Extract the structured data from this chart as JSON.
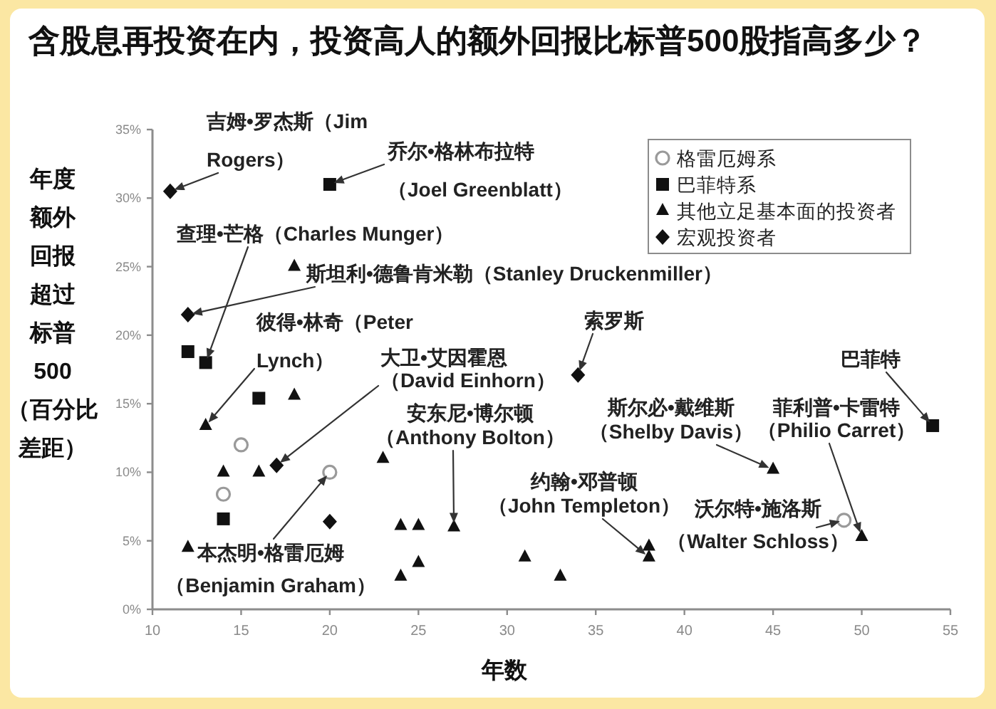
{
  "chart_data": {
    "type": "scatter",
    "title": "含股息再投资在内，投资高人的额外回报比标普500股指高多少？",
    "xlabel": "年数",
    "ylabel": "年度额外回报超过标普500（百分比差距）",
    "xlim": [
      10,
      55
    ],
    "xticks": [
      10,
      15,
      20,
      25,
      30,
      35,
      40,
      45,
      50,
      55
    ],
    "ylim": [
      0,
      35
    ],
    "yticks": [
      {
        "value": 0,
        "label": "0%"
      },
      {
        "value": 5,
        "label": "5%"
      },
      {
        "value": 10,
        "label": "10%"
      },
      {
        "value": 15,
        "label": "15%"
      },
      {
        "value": 20,
        "label": "20%"
      },
      {
        "value": 25,
        "label": "25%"
      },
      {
        "value": 30,
        "label": "30%"
      },
      {
        "value": 35,
        "label": "35%"
      }
    ],
    "grid": false,
    "legend": "top right",
    "series": [
      {
        "name": "格雷厄姆系",
        "marker": "circle",
        "color": "#9a9a9a",
        "x": [
          15,
          14,
          20,
          49
        ],
        "values": [
          12,
          8.4,
          10,
          6.5
        ]
      },
      {
        "name": "巴菲特系",
        "marker": "square",
        "color": "#111111",
        "x": [
          20,
          12,
          13,
          16,
          14,
          54
        ],
        "values": [
          31,
          18.8,
          18,
          15.4,
          6.6,
          13.4
        ]
      },
      {
        "name": "其他立足基本面的投资者",
        "marker": "triangle",
        "color": "#111111",
        "x": [
          18,
          18,
          13,
          14,
          16,
          12,
          23,
          24,
          25,
          27,
          25,
          24,
          31,
          33,
          38,
          38,
          45,
          50
        ],
        "values": [
          25,
          15.6,
          13.4,
          10,
          10,
          4.5,
          11,
          6.1,
          6.1,
          6,
          3.4,
          2.4,
          3.8,
          2.4,
          4.6,
          3.8,
          10.2,
          5.3
        ]
      },
      {
        "name": "宏观投资者",
        "marker": "diamond",
        "color": "#111111",
        "x": [
          11,
          12,
          17,
          20,
          34
        ],
        "values": [
          30.5,
          21.5,
          10.5,
          6.4,
          17.1
        ]
      }
    ],
    "annotations": [
      {
        "text": "吉姆•罗杰斯（Jim Rogers）",
        "x": 11,
        "y": 30.5
      },
      {
        "text": "乔尔•格林布拉特（Joel Greenblatt）",
        "x": 20,
        "y": 31
      },
      {
        "text": "查理•芒格（Charles Munger）",
        "x": 13,
        "y": 18
      },
      {
        "text": "斯坦利•德鲁肯米勒（Stanley Druckenmiller）",
        "x": 12,
        "y": 21.5
      },
      {
        "text": "彼得•林奇（Peter Lynch）",
        "x": 13,
        "y": 13.4
      },
      {
        "text": "大卫•艾因霍恩（David Einhorn）",
        "x": 17,
        "y": 10.5
      },
      {
        "text": "安东尼•博尔顿（Anthony Bolton）",
        "x": 27,
        "y": 6
      },
      {
        "text": "约翰•邓普顿（John Templeton）",
        "x": 38,
        "y": 3.8
      },
      {
        "text": "沃尔特•施洛斯（Walter Schloss）",
        "x": 49,
        "y": 6.5
      },
      {
        "text": "斯尔必•戴维斯（Shelby Davis）",
        "x": 45,
        "y": 10.2
      },
      {
        "text": "菲利普•卡雷特（Philio Carret）",
        "x": 50,
        "y": 5.3
      },
      {
        "text": "巴菲特",
        "x": 54,
        "y": 13.4
      },
      {
        "text": "索罗斯",
        "x": 34,
        "y": 17.1
      },
      {
        "text": "本杰明•格雷厄姆（Benjamin Graham）",
        "x": 20,
        "y": 10
      }
    ]
  }
}
